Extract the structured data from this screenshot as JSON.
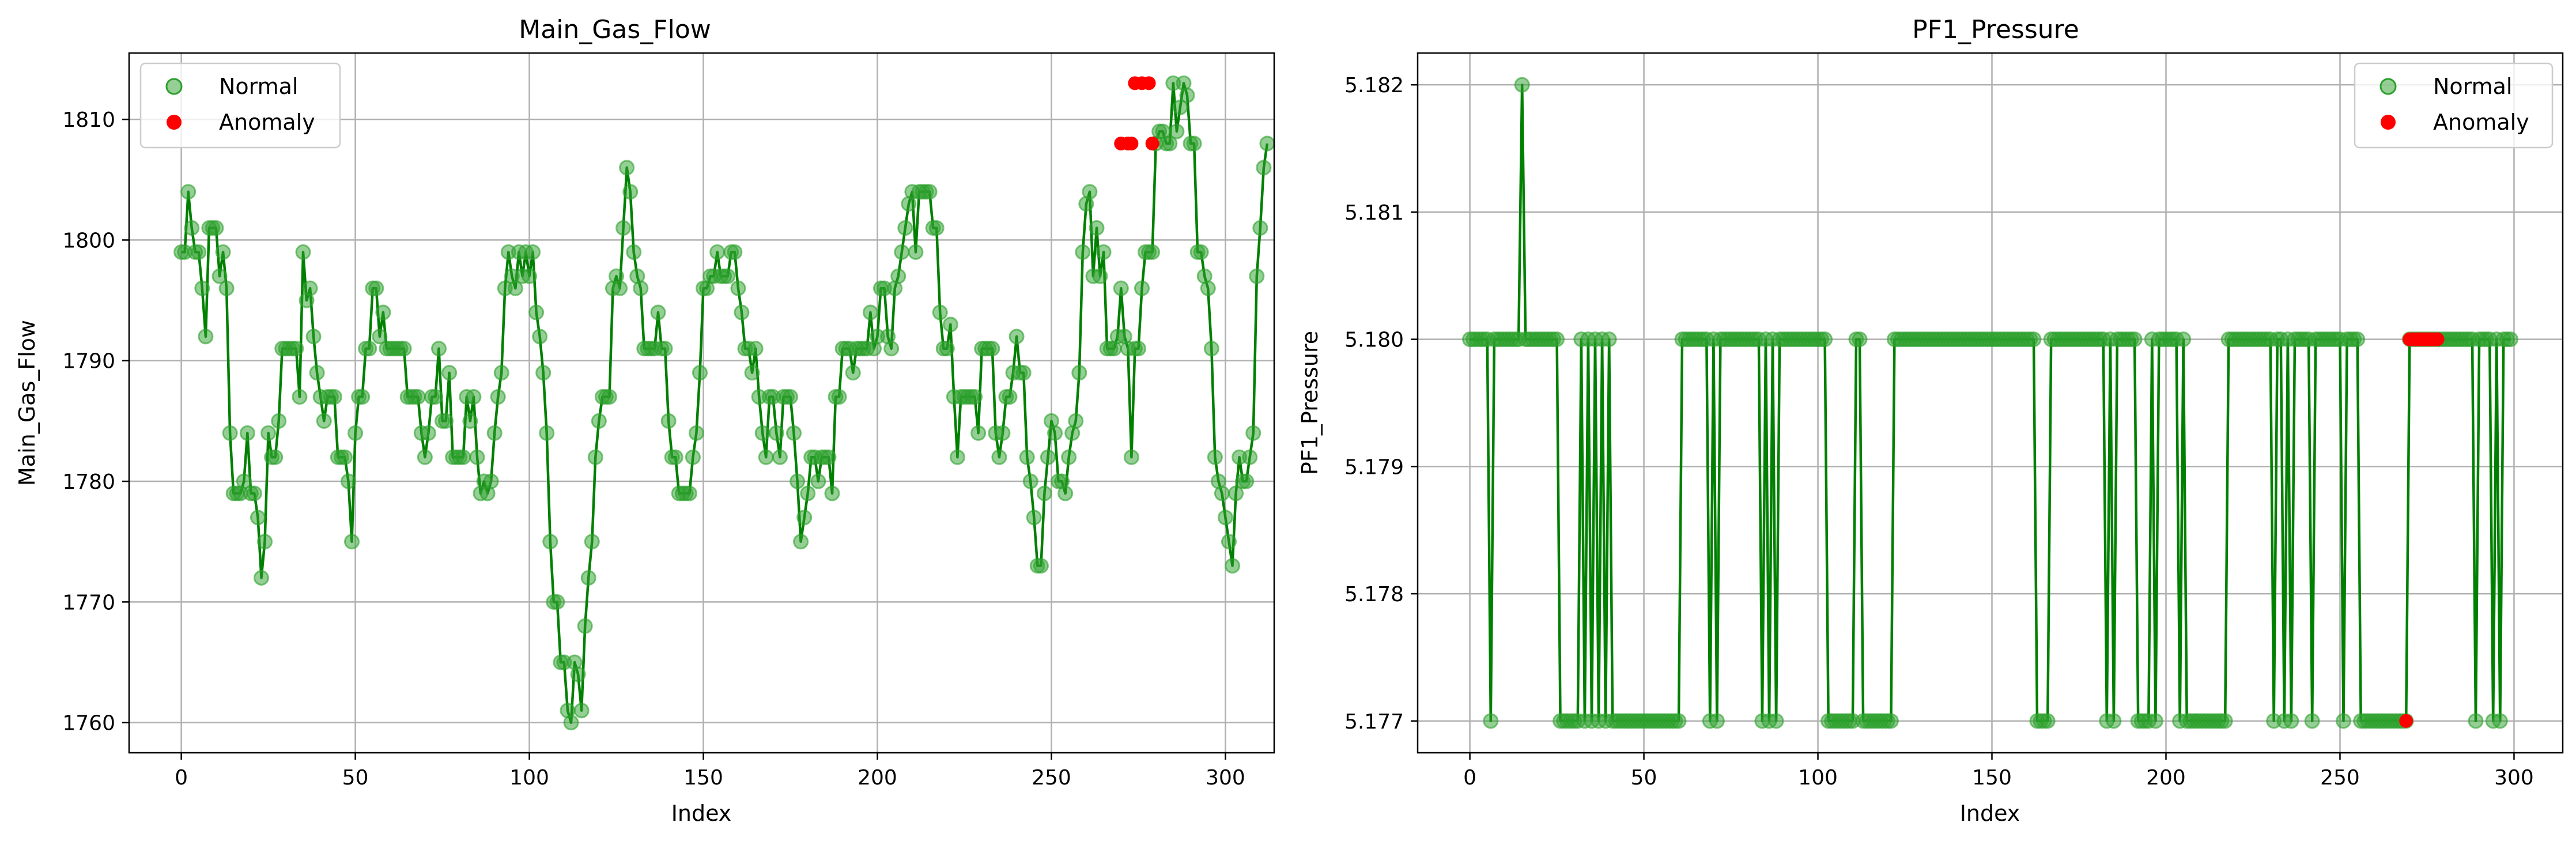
{
  "colors": {
    "normal": "#2ca02c",
    "line": "#008000",
    "anomaly": "#ff0000",
    "grid": "#b0b0b0"
  },
  "chart_data": [
    {
      "type": "line",
      "title": "Main_Gas_Flow",
      "xlabel": "Index",
      "ylabel": "Main_Gas_Flow",
      "xlim": [
        -15,
        314
      ],
      "ylim": [
        1757.5,
        1815.5
      ],
      "xticks": [
        0,
        50,
        100,
        150,
        200,
        250,
        300
      ],
      "yticks": [
        1760,
        1770,
        1780,
        1790,
        1800,
        1810
      ],
      "grid": true,
      "legend": {
        "placement": "top-left",
        "entries": [
          "Normal",
          "Anomaly"
        ]
      },
      "series": [
        {
          "name": "Normal",
          "kind": "line+markers",
          "values": [
            1799,
            1799,
            1804,
            1801,
            1799,
            1799,
            1796,
            1792,
            1801,
            1801,
            1801,
            1797,
            1799,
            1796,
            1784,
            1779,
            1779,
            1779,
            1780,
            1784,
            1779,
            1779,
            1777,
            1772,
            1775,
            1784,
            1782,
            1782,
            1785,
            1791,
            1791,
            1791,
            1791,
            1791,
            1787,
            1799,
            1795,
            1796,
            1792,
            1789,
            1787,
            1785,
            1787,
            1787,
            1787,
            1782,
            1782,
            1782,
            1780,
            1775,
            1784,
            1787,
            1787,
            1791,
            1791,
            1796,
            1796,
            1792,
            1794,
            1791,
            1791,
            1791,
            1791,
            1791,
            1791,
            1787,
            1787,
            1787,
            1787,
            1784,
            1782,
            1784,
            1787,
            1787,
            1791,
            1785,
            1785,
            1789,
            1782,
            1782,
            1782,
            1782,
            1787,
            1785,
            1787,
            1782,
            1779,
            1780,
            1779,
            1780,
            1784,
            1787,
            1789,
            1796,
            1799,
            1797,
            1796,
            1799,
            1797,
            1799,
            1797,
            1799,
            1794,
            1792,
            1789,
            1784,
            1775,
            1770,
            1770,
            1765,
            1765,
            1761,
            1760,
            1765,
            1764,
            1761,
            1768,
            1772,
            1775,
            1782,
            1785,
            1787,
            1787,
            1787,
            1796,
            1797,
            1796,
            1801,
            1806,
            1804,
            1799,
            1797,
            1796,
            1791,
            1791,
            1791,
            1791,
            1794,
            1791,
            1791,
            1785,
            1782,
            1782,
            1779,
            1779,
            1779,
            1779,
            1782,
            1784,
            1789,
            1796,
            1796,
            1797,
            1797,
            1799,
            1797,
            1797,
            1797,
            1799,
            1799,
            1796,
            1794,
            1791,
            1791,
            1789,
            1791,
            1787,
            1784,
            1782,
            1787,
            1787,
            1784,
            1782,
            1787,
            1787,
            1787,
            1784,
            1780,
            1775,
            1777,
            1779,
            1782,
            1782,
            1780,
            1782,
            1782,
            1782,
            1779,
            1787,
            1787,
            1791,
            1791,
            1791,
            1789,
            1791,
            1791,
            1791,
            1791,
            1794,
            1791,
            1792,
            1796,
            1796,
            1792,
            1791,
            1796,
            1797,
            1799,
            1801,
            1803,
            1804,
            1799,
            1804,
            1804,
            1804,
            1804,
            1801,
            1801,
            1794,
            1791,
            1791,
            1793,
            1787,
            1782,
            1787,
            1787,
            1787,
            1787,
            1787,
            1784,
            1791,
            1791,
            1791,
            1791,
            1784,
            1782,
            1784,
            1787,
            1787,
            1789,
            1792,
            1789,
            1789,
            1782,
            1780,
            1777,
            1773,
            1773,
            1779,
            1782,
            1785,
            1784,
            1780,
            1780,
            1779,
            1782,
            1784,
            1785,
            1789,
            1799,
            1803,
            1804,
            1797,
            1801,
            1797,
            1799,
            1791,
            1791,
            1791,
            1792,
            1796,
            1792,
            1791,
            1782,
            1791,
            1791,
            1796,
            1799,
            1799,
            1799,
            1808,
            1809,
            1809,
            1808,
            1808,
            1813,
            1809,
            1811,
            1813,
            1812,
            1808,
            1808,
            1799,
            1799,
            1797,
            1796,
            1791,
            1782,
            1780,
            1779,
            1777,
            1775,
            1773,
            1779,
            1782,
            1780,
            1780,
            1782,
            1784,
            1797,
            1801,
            1806,
            1808
          ]
        },
        {
          "name": "Anomaly",
          "kind": "markers",
          "points": [
            [
              270,
              1808
            ],
            [
              272,
              1808
            ],
            [
              273,
              1808
            ],
            [
              274,
              1813
            ],
            [
              276,
              1813
            ],
            [
              278,
              1813
            ],
            [
              279,
              1808
            ]
          ]
        }
      ]
    },
    {
      "type": "line",
      "title": "PF1_Pressure",
      "xlabel": "Index",
      "ylabel": "PF1_Pressure",
      "xlim": [
        -15,
        314
      ],
      "ylim": [
        5.17675,
        5.18225
      ],
      "xticks": [
        0,
        50,
        100,
        150,
        200,
        250,
        300
      ],
      "yticks": [
        5.177,
        5.178,
        5.179,
        5.18,
        5.181,
        5.182
      ],
      "grid": true,
      "legend": {
        "placement": "top-right",
        "entries": [
          "Normal",
          "Anomaly"
        ]
      },
      "series": [
        {
          "name": "Normal",
          "kind": "line+markers",
          "low_indices": [
            6,
            26,
            27,
            28,
            29,
            30,
            31,
            33,
            35,
            37,
            39,
            41,
            42,
            43,
            44,
            45,
            46,
            47,
            48,
            49,
            50,
            51,
            52,
            53,
            54,
            55,
            56,
            57,
            58,
            59,
            60,
            69,
            71,
            84,
            86,
            88,
            103,
            104,
            105,
            106,
            107,
            108,
            109,
            110,
            113,
            114,
            115,
            116,
            117,
            118,
            119,
            120,
            121,
            163,
            164,
            165,
            166,
            183,
            185,
            192,
            193,
            194,
            195,
            197,
            204,
            206,
            207,
            208,
            209,
            210,
            211,
            212,
            213,
            214,
            215,
            216,
            217,
            231,
            234,
            236,
            242,
            251,
            256,
            257,
            258,
            259,
            260,
            261,
            262,
            263,
            264,
            265,
            266,
            267,
            268,
            269,
            289,
            294,
            296
          ],
          "low_value": 5.177,
          "high_value": 5.18,
          "spike": [
            15,
            5.182
          ],
          "x_end": 299
        },
        {
          "name": "Anomaly",
          "kind": "markers",
          "points": [
            [
              269,
              5.177
            ],
            [
              270,
              5.18
            ],
            [
              271,
              5.18
            ],
            [
              272,
              5.18
            ],
            [
              273,
              5.18
            ],
            [
              274,
              5.18
            ],
            [
              275,
              5.18
            ],
            [
              276,
              5.18
            ],
            [
              277,
              5.18
            ],
            [
              278,
              5.18
            ]
          ]
        }
      ]
    }
  ]
}
